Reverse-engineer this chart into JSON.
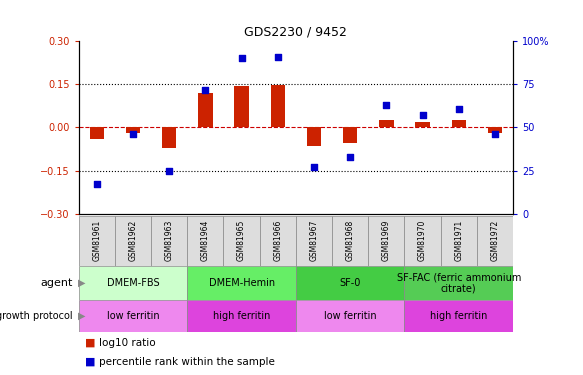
{
  "title": "GDS2230 / 9452",
  "samples": [
    "GSM81961",
    "GSM81962",
    "GSM81963",
    "GSM81964",
    "GSM81965",
    "GSM81966",
    "GSM81967",
    "GSM81968",
    "GSM81969",
    "GSM81970",
    "GSM81971",
    "GSM81972"
  ],
  "log10_ratio": [
    -0.04,
    -0.02,
    -0.07,
    0.12,
    0.145,
    0.147,
    -0.065,
    -0.055,
    0.025,
    0.02,
    0.025,
    -0.02
  ],
  "percentile_rank": [
    17,
    46,
    25,
    72,
    90,
    91,
    27,
    33,
    63,
    57,
    61,
    46
  ],
  "ylim_left": [
    -0.3,
    0.3
  ],
  "ylim_right": [
    0,
    100
  ],
  "yticks_left": [
    -0.3,
    -0.15,
    0.0,
    0.15,
    0.3
  ],
  "yticks_right": [
    0,
    25,
    50,
    75,
    100
  ],
  "hlines": [
    0.15,
    -0.15
  ],
  "bar_color": "#cc2200",
  "dot_color": "#0000cc",
  "zero_line_color": "#cc0000",
  "agent_groups": [
    {
      "label": "DMEM-FBS",
      "start": 0,
      "end": 3,
      "color": "#ccffcc"
    },
    {
      "label": "DMEM-Hemin",
      "start": 3,
      "end": 6,
      "color": "#66ee66"
    },
    {
      "label": "SF-0",
      "start": 6,
      "end": 9,
      "color": "#44cc44"
    },
    {
      "label": "SF-FAC (ferric ammonium\ncitrate)",
      "start": 9,
      "end": 12,
      "color": "#55cc55"
    }
  ],
  "growth_groups": [
    {
      "label": "low ferritin",
      "start": 0,
      "end": 3,
      "color": "#ee88ee"
    },
    {
      "label": "high ferritin",
      "start": 3,
      "end": 6,
      "color": "#dd44dd"
    },
    {
      "label": "low ferritin",
      "start": 6,
      "end": 9,
      "color": "#ee88ee"
    },
    {
      "label": "high ferritin",
      "start": 9,
      "end": 12,
      "color": "#dd44dd"
    }
  ],
  "legend_bar_color": "#cc2200",
  "legend_dot_color": "#0000cc",
  "legend_label1": "log10 ratio",
  "legend_label2": "percentile rank within the sample",
  "bar_width": 0.4,
  "dot_size": 20
}
